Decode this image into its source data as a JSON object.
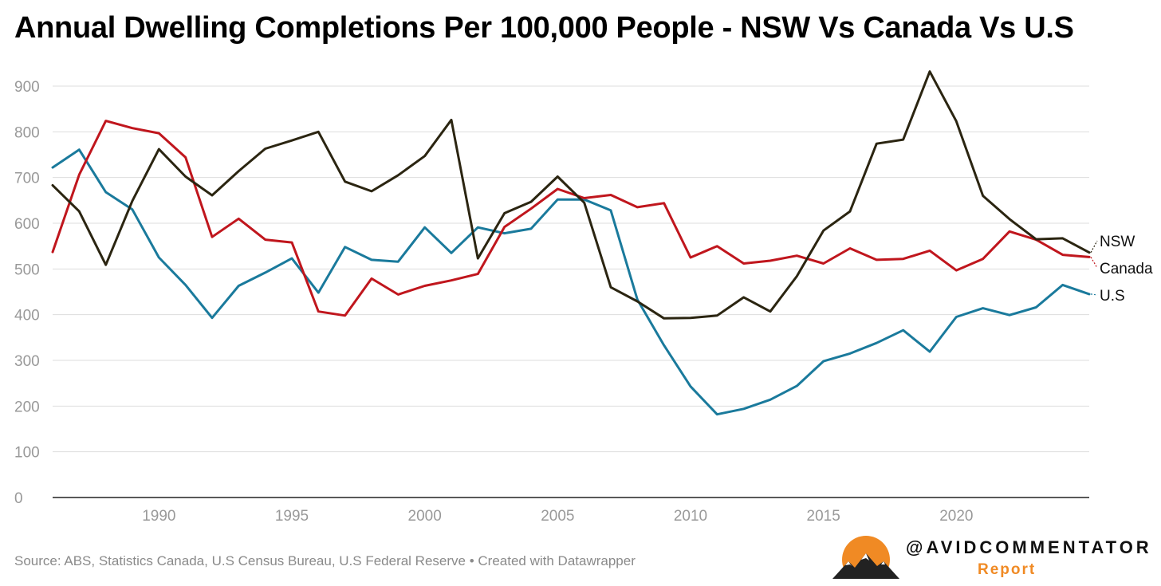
{
  "title": "Annual Dwelling Completions Per 100,000 People - NSW Vs Canada Vs U.S",
  "source": "Source: ABS, Statistics Canada, U.S Census Bureau, U.S Federal Reserve • Created with Datawrapper",
  "branding": {
    "handle": "@AVIDCOMMENTATOR",
    "tagline": "Report",
    "logo_icon": "mountain-sunrise-logo",
    "sun_color": "#f08a24"
  },
  "chart_data": {
    "type": "line",
    "title": "Annual Dwelling Completions Per 100,000 People - NSW Vs Canada Vs U.S",
    "xlabel": "",
    "ylabel": "",
    "xlim": [
      1986,
      2025
    ],
    "ylim": [
      0,
      900
    ],
    "yticks": [
      0,
      100,
      200,
      300,
      400,
      500,
      600,
      700,
      800,
      900
    ],
    "xticks": [
      1990,
      1995,
      2000,
      2005,
      2010,
      2015,
      2020
    ],
    "x": [
      1986,
      1987,
      1988,
      1989,
      1990,
      1991,
      1992,
      1993,
      1994,
      1995,
      1996,
      1997,
      1998,
      1999,
      2000,
      2001,
      2002,
      2003,
      2004,
      2005,
      2006,
      2007,
      2008,
      2009,
      2010,
      2011,
      2012,
      2013,
      2014,
      2015,
      2016,
      2017,
      2018,
      2019,
      2020,
      2021,
      2022,
      2023,
      2024,
      2025
    ],
    "grid": true,
    "legend": "direct labels at right end of lines",
    "series": [
      {
        "name": "U.S",
        "color": "#1a7a9c",
        "values": [
          722,
          761,
          668,
          630,
          525,
          465,
          393,
          463,
          492,
          523,
          448,
          548,
          520,
          516,
          591,
          535,
          591,
          578,
          588,
          652,
          652,
          628,
          433,
          333,
          243,
          182,
          194,
          214,
          244,
          298,
          315,
          338,
          366,
          319,
          395,
          414,
          399,
          416,
          465,
          445
        ]
      },
      {
        "name": "Canada",
        "color": "#c0161d",
        "values": [
          537,
          706,
          824,
          808,
          797,
          744,
          570,
          610,
          564,
          558,
          407,
          398,
          479,
          444,
          463,
          475,
          489,
          592,
          632,
          675,
          655,
          662,
          635,
          644,
          525,
          550,
          512,
          518,
          529,
          512,
          545,
          520,
          522,
          540,
          497,
          522,
          582,
          564,
          531,
          526
        ]
      },
      {
        "name": "NSW",
        "color": "#2b2511",
        "values": [
          683,
          626,
          509,
          649,
          762,
          702,
          661,
          714,
          763,
          781,
          800,
          691,
          670,
          705,
          747,
          826,
          523,
          622,
          647,
          702,
          645,
          460,
          429,
          392,
          393,
          398,
          438,
          407,
          484,
          584,
          626,
          774,
          783,
          932,
          823,
          660,
          609,
          565,
          567,
          536
        ]
      }
    ]
  }
}
